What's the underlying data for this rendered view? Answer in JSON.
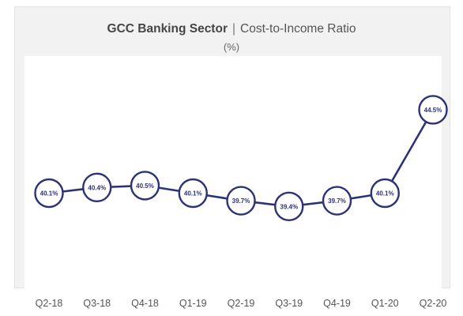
{
  "chart_data": {
    "type": "line",
    "title": "GCC Banking Sector",
    "subtitle": "Cost-to-Income Ratio",
    "separator": "|",
    "unit": "(%)",
    "categories": [
      "Q2-18",
      "Q3-18",
      "Q4-18",
      "Q1-19",
      "Q2-19",
      "Q3-19",
      "Q4-19",
      "Q1-20",
      "Q2-20"
    ],
    "series": [
      {
        "values": [
          40.1,
          40.4,
          40.5,
          40.1,
          39.7,
          39.4,
          39.7,
          40.1,
          44.5
        ],
        "labels": [
          "40.1%",
          "40.4%",
          "40.5%",
          "40.1%",
          "39.7%",
          "39.4%",
          "39.7%",
          "40.1%",
          "44.5%"
        ]
      }
    ],
    "ylim": [
      35.2,
      45.5
    ],
    "grid": false,
    "legend": "none",
    "colors": {
      "line": "#2d3278",
      "marker_fill": "#ffffff",
      "label": "#2d3278",
      "panel": "#f2f2f2",
      "plot_bg": "#ffffff"
    }
  }
}
